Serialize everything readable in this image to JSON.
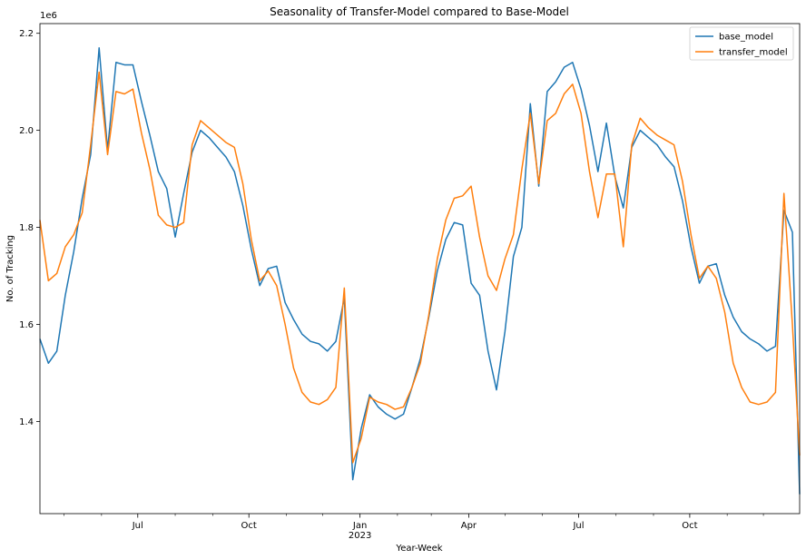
{
  "chart_data": {
    "type": "line",
    "title": "Seasonality of Transfer-Model compared to Base-Model",
    "xlabel": "Year-Week",
    "ylabel": "No. of Tracking",
    "y_offset_label": "1e6",
    "ylim": [
      1.21,
      2.22
    ],
    "xlim": [
      "2022-04-11",
      "2023-12-31"
    ],
    "y_ticks": [
      1.4,
      1.6,
      1.8,
      2.0,
      2.2
    ],
    "y_tick_labels": [
      "1.4",
      "1.6",
      "1.8",
      "2.0",
      "2.2"
    ],
    "x_ticks": [
      {
        "date": "2022-07-01",
        "label": "Jul"
      },
      {
        "date": "2022-10-01",
        "label": "Oct"
      },
      {
        "date": "2023-01-01",
        "label": "Jan",
        "sublabel": "2023"
      },
      {
        "date": "2023-04-01",
        "label": "Apr"
      },
      {
        "date": "2023-07-01",
        "label": "Jul"
      },
      {
        "date": "2023-10-01",
        "label": "Oct"
      }
    ],
    "x_minor_ticks": [
      "2022-05-01",
      "2022-06-01",
      "2022-08-01",
      "2022-09-01",
      "2022-11-01",
      "2022-12-01",
      "2023-02-01",
      "2023-03-01",
      "2023-05-01",
      "2023-06-01",
      "2023-08-01",
      "2023-09-01",
      "2023-11-01",
      "2023-12-01"
    ],
    "grid": false,
    "legend_position": "top-right",
    "x": [
      "2022-04-11",
      "2022-04-18",
      "2022-04-25",
      "2022-05-02",
      "2022-05-09",
      "2022-05-16",
      "2022-05-23",
      "2022-05-30",
      "2022-06-06",
      "2022-06-13",
      "2022-06-20",
      "2022-06-27",
      "2022-07-04",
      "2022-07-11",
      "2022-07-18",
      "2022-07-25",
      "2022-08-01",
      "2022-08-08",
      "2022-08-15",
      "2022-08-22",
      "2022-08-29",
      "2022-09-05",
      "2022-09-12",
      "2022-09-19",
      "2022-09-26",
      "2022-10-03",
      "2022-10-10",
      "2022-10-17",
      "2022-10-24",
      "2022-10-31",
      "2022-11-07",
      "2022-11-14",
      "2022-11-21",
      "2022-11-28",
      "2022-12-05",
      "2022-12-12",
      "2022-12-19",
      "2022-12-26",
      "2023-01-02",
      "2023-01-09",
      "2023-01-16",
      "2023-01-23",
      "2023-01-30",
      "2023-02-06",
      "2023-02-13",
      "2023-02-20",
      "2023-02-27",
      "2023-03-06",
      "2023-03-13",
      "2023-03-20",
      "2023-03-27",
      "2023-04-03",
      "2023-04-10",
      "2023-04-17",
      "2023-04-24",
      "2023-05-01",
      "2023-05-08",
      "2023-05-15",
      "2023-05-22",
      "2023-05-29",
      "2023-06-05",
      "2023-06-12",
      "2023-06-19",
      "2023-06-26",
      "2023-07-03",
      "2023-07-10",
      "2023-07-17",
      "2023-07-24",
      "2023-07-31",
      "2023-08-07",
      "2023-08-14",
      "2023-08-21",
      "2023-08-28",
      "2023-09-04",
      "2023-09-11",
      "2023-09-18",
      "2023-09-25",
      "2023-10-02",
      "2023-10-09",
      "2023-10-16",
      "2023-10-23",
      "2023-10-30",
      "2023-11-06",
      "2023-11-13",
      "2023-11-20",
      "2023-11-27",
      "2023-12-04",
      "2023-12-11",
      "2023-12-18",
      "2023-12-25",
      "2023-12-31"
    ],
    "series": [
      {
        "name": "base_model",
        "color": "#1f77b4",
        "values": [
          1.57,
          1.52,
          1.545,
          1.66,
          1.75,
          1.86,
          1.95,
          2.17,
          1.96,
          2.14,
          2.135,
          2.135,
          2.06,
          1.99,
          1.915,
          1.88,
          1.78,
          1.87,
          1.955,
          2.0,
          1.985,
          1.965,
          1.945,
          1.915,
          1.845,
          1.755,
          1.68,
          1.715,
          1.72,
          1.645,
          1.61,
          1.58,
          1.565,
          1.56,
          1.545,
          1.565,
          1.655,
          1.28,
          1.385,
          1.455,
          1.43,
          1.415,
          1.405,
          1.415,
          1.47,
          1.53,
          1.615,
          1.71,
          1.775,
          1.81,
          1.805,
          1.685,
          1.66,
          1.545,
          1.465,
          1.585,
          1.74,
          1.8,
          2.055,
          1.885,
          2.08,
          2.1,
          2.13,
          2.14,
          2.085,
          2.01,
          1.915,
          2.015,
          1.905,
          1.84,
          1.965,
          2.0,
          1.985,
          1.97,
          1.945,
          1.925,
          1.855,
          1.76,
          1.685,
          1.72,
          1.725,
          1.66,
          1.615,
          1.585,
          1.57,
          1.56,
          1.545,
          1.555,
          1.835,
          1.79,
          1.25
        ]
      },
      {
        "name": "transfer_model",
        "color": "#ff7f0e",
        "values": [
          1.815,
          1.69,
          1.705,
          1.76,
          1.785,
          1.83,
          1.97,
          2.12,
          1.95,
          2.08,
          2.075,
          2.085,
          1.995,
          1.92,
          1.825,
          1.805,
          1.8,
          1.81,
          1.97,
          2.02,
          2.005,
          1.99,
          1.975,
          1.965,
          1.89,
          1.775,
          1.69,
          1.71,
          1.68,
          1.6,
          1.51,
          1.46,
          1.44,
          1.435,
          1.445,
          1.47,
          1.675,
          1.315,
          1.365,
          1.45,
          1.44,
          1.435,
          1.425,
          1.43,
          1.47,
          1.52,
          1.62,
          1.735,
          1.815,
          1.86,
          1.865,
          1.885,
          1.78,
          1.7,
          1.67,
          1.735,
          1.785,
          1.92,
          2.035,
          1.89,
          2.02,
          2.035,
          2.075,
          2.095,
          2.035,
          1.915,
          1.82,
          1.91,
          1.91,
          1.76,
          1.97,
          2.025,
          2.005,
          1.99,
          1.98,
          1.97,
          1.895,
          1.785,
          1.695,
          1.72,
          1.695,
          1.625,
          1.52,
          1.47,
          1.44,
          1.435,
          1.44,
          1.46,
          1.87,
          1.6,
          1.33
        ]
      }
    ]
  }
}
